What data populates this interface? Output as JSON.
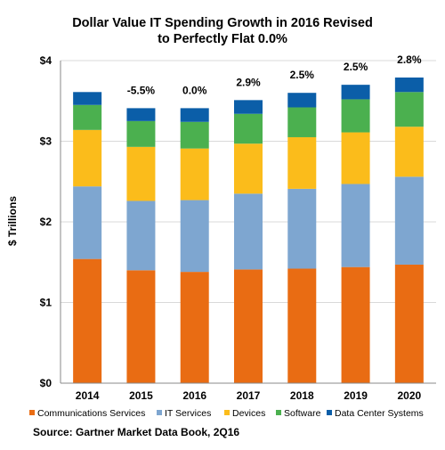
{
  "chart_data": {
    "type": "bar",
    "stacked": true,
    "title": "Dollar Value IT Spending Growth in 2016 Revised",
    "subtitle": "to Perfectly Flat 0.0%",
    "ylabel": "$ Trillions",
    "xlabel": "",
    "ylim": [
      0,
      4
    ],
    "yticks": [
      {
        "value": 0,
        "label": "$0"
      },
      {
        "value": 1,
        "label": "$1"
      },
      {
        "value": 2,
        "label": "$2"
      },
      {
        "value": 3,
        "label": "$3"
      },
      {
        "value": 4,
        "label": "$4"
      }
    ],
    "grid": true,
    "legend_position": "bottom",
    "categories": [
      "2014",
      "2015",
      "2016",
      "2017",
      "2018",
      "2019",
      "2020"
    ],
    "series": [
      {
        "name": "Communications Services",
        "color": "#e96c13",
        "values": [
          1.54,
          1.4,
          1.38,
          1.41,
          1.42,
          1.44,
          1.47
        ]
      },
      {
        "name": "IT Services",
        "color": "#7ea6d0",
        "values": [
          0.9,
          0.86,
          0.89,
          0.94,
          0.99,
          1.03,
          1.09
        ]
      },
      {
        "name": "Devices",
        "color": "#fbbc1b",
        "values": [
          0.7,
          0.67,
          0.64,
          0.62,
          0.64,
          0.64,
          0.62
        ]
      },
      {
        "name": "Software",
        "color": "#4bb04f",
        "values": [
          0.31,
          0.32,
          0.33,
          0.37,
          0.37,
          0.41,
          0.43
        ]
      },
      {
        "name": "Data Center Systems",
        "color": "#0b5ea8",
        "values": [
          0.16,
          0.16,
          0.17,
          0.17,
          0.18,
          0.18,
          0.18
        ]
      }
    ],
    "growth_labels": [
      "",
      "-5.5%",
      "0.0%",
      "2.9%",
      "2.5%",
      "2.5%",
      "2.8%"
    ],
    "source": "Source: Gartner Market Data Book, 2Q16"
  }
}
